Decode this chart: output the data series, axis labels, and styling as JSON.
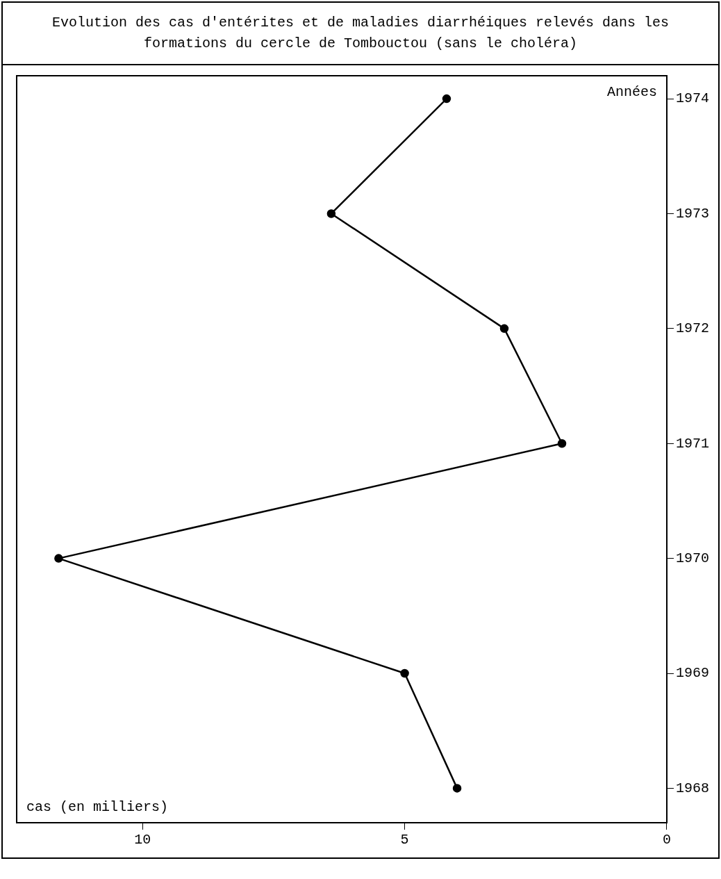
{
  "chart_data": {
    "type": "line",
    "orientation": "horizontal",
    "title": "Evolution des cas d'entérites et de maladies diarrhéiques relevés dans les formations du cercle de Tombouctou (sans le choléra)",
    "xlabel": "cas (en milliers)",
    "ylabel": "Années",
    "x": [
      1968,
      1969,
      1970,
      1971,
      1972,
      1973,
      1974
    ],
    "series": [
      {
        "color": "#000000",
        "values": [
          4.0,
          5.0,
          11.6,
          2.0,
          3.1,
          6.4,
          4.2
        ]
      }
    ],
    "xlim": [
      12.4,
      0
    ],
    "xticks": [
      0,
      5,
      10
    ],
    "ylim": [
      1967.7,
      1974.2
    ],
    "yticks": [
      1968,
      1969,
      1970,
      1971,
      1972,
      1973,
      1974
    ],
    "grid": false,
    "legend": false,
    "marker": "circle",
    "line_style": "solid"
  }
}
